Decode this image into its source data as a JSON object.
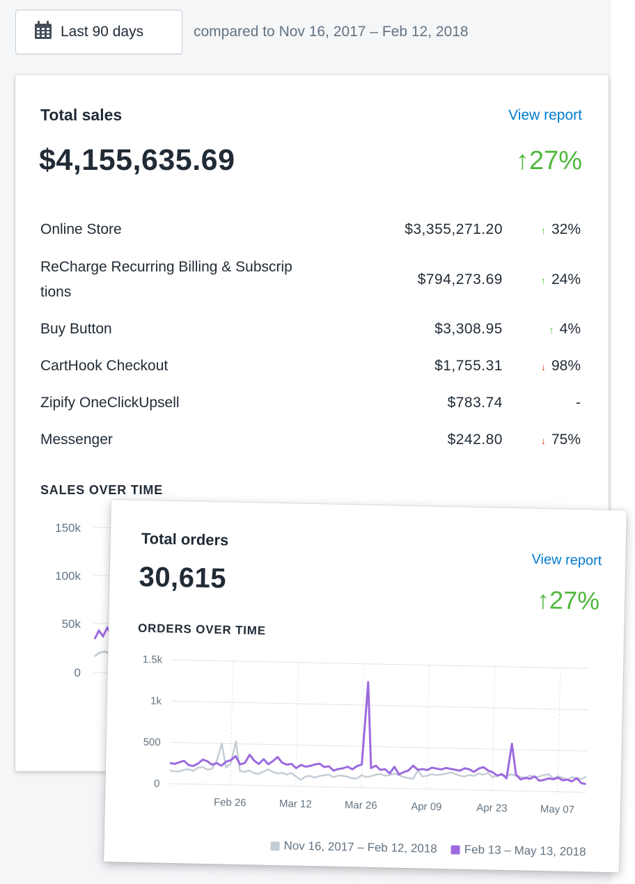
{
  "date_filter": {
    "label": "Last 90 days",
    "compare_text": "compared to Nov 16, 2017 – Feb 12, 2018",
    "icon": "calendar-icon"
  },
  "total_sales": {
    "title": "Total sales",
    "view_report": "View report",
    "value": "$4,155,635.69",
    "change": "27%",
    "change_direction": "up",
    "rows": [
      {
        "name": "Online Store",
        "amount": "$3,355,271.20",
        "change": "32%",
        "direction": "up"
      },
      {
        "name": "ReCharge Recurring Billing & Subscrip",
        "name_line2": "tions",
        "amount": "$794,273.69",
        "change": "24%",
        "direction": "up"
      },
      {
        "name": "Buy Button",
        "amount": "$3,308.95",
        "change": "4%",
        "direction": "up"
      },
      {
        "name": "CartHook Checkout",
        "amount": "$1,755.31",
        "change": "98%",
        "direction": "down"
      },
      {
        "name": "Zipify OneClickUpsell",
        "amount": "$783.74",
        "change": "-",
        "direction": "none"
      },
      {
        "name": "Messenger",
        "amount": "$242.80",
        "change": "75%",
        "direction": "down"
      }
    ],
    "chart_heading": "SALES OVER TIME",
    "chart_ticks": [
      "150k",
      "100k",
      "50k",
      "0"
    ]
  },
  "total_orders": {
    "title": "Total orders",
    "view_report": "View report",
    "value": "30,615",
    "change": "27%",
    "change_direction": "up",
    "chart_heading": "ORDERS OVER TIME"
  },
  "colors": {
    "current": "#9c6ade",
    "previous": "#c4cdd5",
    "positive": "#50b83c",
    "negative": "#de3618",
    "link": "#007ace"
  },
  "chart_data": {
    "type": "line",
    "title": "ORDERS OVER TIME",
    "ylim": [
      0,
      1500
    ],
    "y_ticks": [
      "1.5k",
      "1k",
      "500",
      "0"
    ],
    "x_tick_labels": [
      "Feb 26",
      "Mar 12",
      "Mar 26",
      "Apr 09",
      "Apr 23",
      "May 07"
    ],
    "grid": true,
    "legend_position": "bottom-right",
    "series": [
      {
        "name": "Nov 16, 2017 – Feb 12, 2018",
        "color": "#c4cdd5",
        "values": [
          160,
          150,
          150,
          170,
          180,
          160,
          200,
          210,
          180,
          190,
          290,
          500,
          210,
          260,
          530,
          170,
          160,
          180,
          150,
          140,
          170,
          200,
          170,
          150,
          160,
          140,
          160,
          120,
          80,
          120,
          130,
          110,
          130,
          140,
          150,
          120,
          140,
          140,
          130,
          110,
          110,
          150,
          130,
          140,
          160,
          170,
          150,
          160,
          180,
          160,
          140,
          130,
          120,
          220,
          150,
          160,
          180,
          170,
          180,
          190,
          210,
          190,
          170,
          160,
          180,
          170,
          200,
          190,
          210,
          160,
          180,
          190,
          180,
          200,
          180,
          170,
          160,
          190,
          170,
          180,
          200,
          210,
          160,
          190,
          170,
          150,
          180,
          170,
          160,
          190
        ]
      },
      {
        "name": "Feb 13 – May 13, 2018",
        "color": "#9c6ade",
        "values": [
          250,
          240,
          260,
          280,
          230,
          220,
          250,
          300,
          280,
          240,
          260,
          230,
          280,
          300,
          350,
          250,
          270,
          370,
          300,
          260,
          320,
          260,
          300,
          350,
          280,
          260,
          270,
          220,
          260,
          240,
          250,
          270,
          280,
          240,
          250,
          200,
          220,
          230,
          250,
          220,
          260,
          280,
          1280,
          240,
          270,
          220,
          230,
          180,
          260,
          170,
          200,
          220,
          280,
          230,
          240,
          230,
          260,
          250,
          240,
          260,
          250,
          240,
          230,
          260,
          250,
          220,
          260,
          280,
          240,
          220,
          180,
          200,
          150,
          570,
          200,
          140,
          160,
          150,
          180,
          130,
          140,
          160,
          150,
          170,
          140,
          150,
          130,
          170,
          110,
          100
        ]
      }
    ]
  }
}
